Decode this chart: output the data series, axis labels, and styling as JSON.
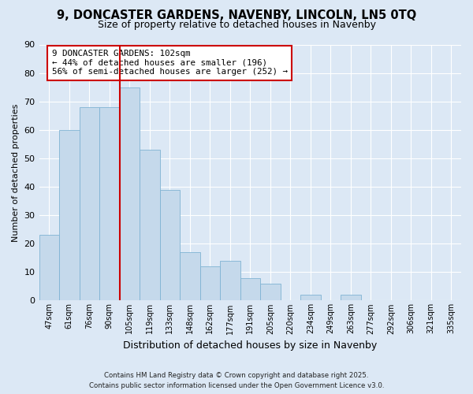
{
  "title": "9, DONCASTER GARDENS, NAVENBY, LINCOLN, LN5 0TQ",
  "subtitle": "Size of property relative to detached houses in Navenby",
  "xlabel": "Distribution of detached houses by size in Navenby",
  "ylabel": "Number of detached properties",
  "bin_labels": [
    "47sqm",
    "61sqm",
    "76sqm",
    "90sqm",
    "105sqm",
    "119sqm",
    "133sqm",
    "148sqm",
    "162sqm",
    "177sqm",
    "191sqm",
    "205sqm",
    "220sqm",
    "234sqm",
    "249sqm",
    "263sqm",
    "277sqm",
    "292sqm",
    "306sqm",
    "321sqm",
    "335sqm"
  ],
  "bar_heights": [
    23,
    60,
    68,
    68,
    75,
    53,
    39,
    17,
    12,
    14,
    8,
    6,
    0,
    2,
    0,
    2,
    0,
    0,
    0,
    0,
    0
  ],
  "bar_color": "#c5d9eb",
  "bar_edge_color": "#7fb3d3",
  "background_color": "#dce8f5",
  "grid_color": "#ffffff",
  "vline_x_index": 4,
  "vline_color": "#cc0000",
  "annotation_text": "9 DONCASTER GARDENS: 102sqm\n← 44% of detached houses are smaller (196)\n56% of semi-detached houses are larger (252) →",
  "annotation_box_color": "#ffffff",
  "annotation_box_edge": "#cc0000",
  "footer_line1": "Contains HM Land Registry data © Crown copyright and database right 2025.",
  "footer_line2": "Contains public sector information licensed under the Open Government Licence v3.0.",
  "ylim": [
    0,
    90
  ],
  "yticks": [
    0,
    10,
    20,
    30,
    40,
    50,
    60,
    70,
    80,
    90
  ],
  "title_fontsize": 10.5,
  "subtitle_fontsize": 9,
  "ylabel_fontsize": 8,
  "xlabel_fontsize": 9
}
